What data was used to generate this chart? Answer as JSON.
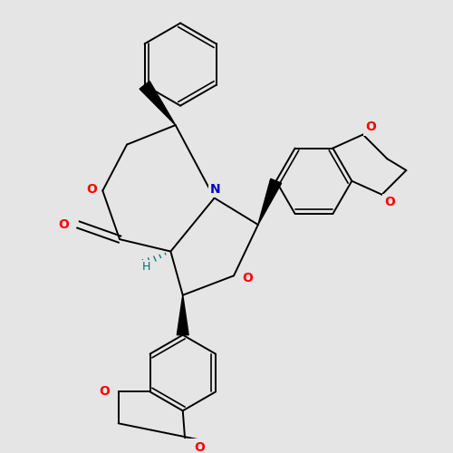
{
  "background_color": "#e5e5e5",
  "bond_color": "#000000",
  "O_color": "#ff0000",
  "N_color": "#0000cc",
  "H_color": "#007070",
  "lw": 1.4,
  "fs": 10,
  "figsize": [
    5.0,
    5.0
  ],
  "dpi": 100,
  "xlim": [
    -2.5,
    5.5
  ],
  "ylim": [
    -4.5,
    4.5
  ]
}
